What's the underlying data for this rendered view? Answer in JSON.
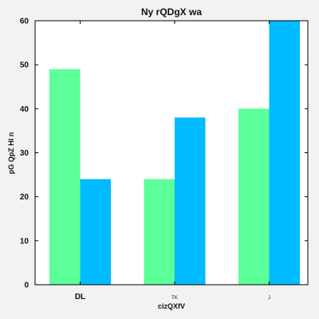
{
  "chart_data": {
    "type": "bar",
    "title": "Ny rQDgX wa",
    "xlabel": "cizQXfV",
    "ylabel": "pG QpZ HI n",
    "categories": [
      "DL",
      "TK",
      "J"
    ],
    "series": [
      {
        "values": [
          49,
          24,
          40
        ],
        "color": "#5cff98"
      },
      {
        "values": [
          24,
          38,
          60
        ],
        "color": "#00bbff"
      }
    ],
    "ylim": [
      0,
      60
    ],
    "yticks": [
      0,
      10,
      20,
      30,
      40,
      50,
      60
    ],
    "grid": false,
    "legend": "none"
  }
}
